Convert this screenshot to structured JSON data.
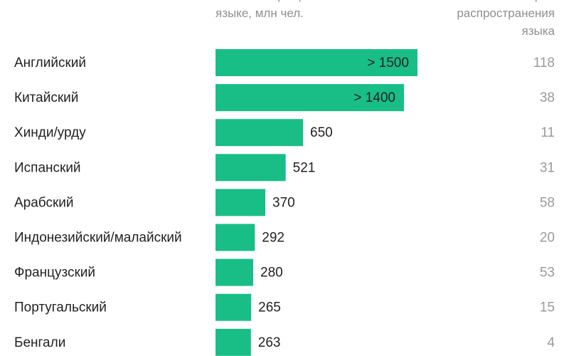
{
  "chart_data": {
    "type": "bar",
    "value_header": "Число говорящих на языке, млн чел.",
    "count_header": "Количество стран распространения языка",
    "categories": [
      "Английский",
      "Китайский",
      "Хинди/урду",
      "Испанский",
      "Арабский",
      "Индонезийский/малайский",
      "Французский",
      "Португальский",
      "Бенгали"
    ],
    "values": [
      1500,
      1400,
      650,
      521,
      370,
      292,
      280,
      265,
      263
    ],
    "value_labels": [
      "> 1500",
      "> 1400",
      "650",
      "521",
      "370",
      "292",
      "280",
      "265",
      "263"
    ],
    "countries": [
      118,
      38,
      11,
      31,
      58,
      20,
      53,
      15,
      4
    ],
    "color": "#19be87"
  }
}
